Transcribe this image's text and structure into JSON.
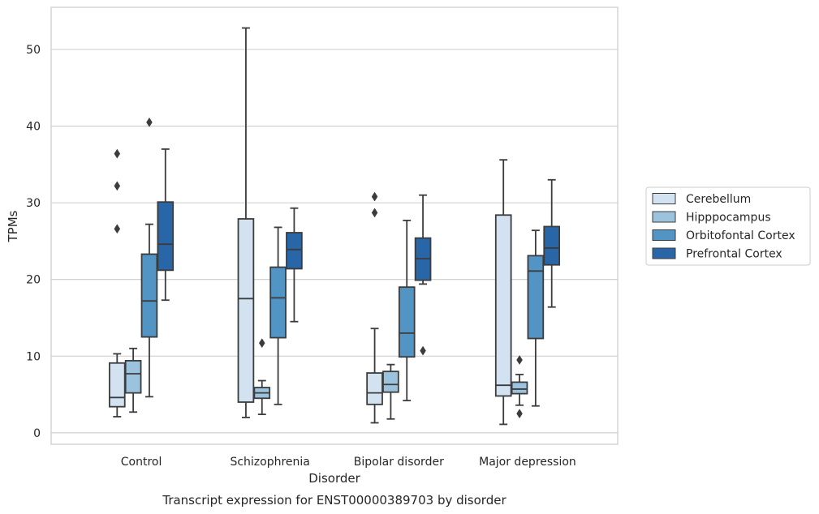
{
  "chart_data": {
    "type": "box",
    "title": "",
    "caption": "Transcript expression for ENST00000389703 by disorder",
    "xlabel": "Disorder",
    "ylabel": "TPMs",
    "ylim": [
      -1.5,
      55.5
    ],
    "yticks": [
      0,
      10,
      20,
      30,
      40,
      50
    ],
    "grid": "horizontal",
    "legend_position": "right-outside",
    "categories": [
      "Control",
      "Schizophrenia",
      "Bipolar disorder",
      "Major depression"
    ],
    "series": [
      {
        "name": "Cerebellum",
        "color": "#d3e2f0",
        "boxes": [
          {
            "whislo": 2.1,
            "q1": 3.4,
            "med": 4.6,
            "q3": 9.1,
            "whishi": 10.3,
            "fliers": [
              26.6,
              32.2,
              36.4
            ]
          },
          {
            "whislo": 2.0,
            "q1": 4.0,
            "med": 17.5,
            "q3": 27.9,
            "whishi": 52.8,
            "fliers": []
          },
          {
            "whislo": 1.3,
            "q1": 3.7,
            "med": 5.2,
            "q3": 7.8,
            "whishi": 13.6,
            "fliers": [
              28.7,
              30.8
            ]
          },
          {
            "whislo": 1.1,
            "q1": 4.8,
            "med": 6.2,
            "q3": 28.4,
            "whishi": 35.6,
            "fliers": []
          }
        ]
      },
      {
        "name": "Hipppocampus",
        "color": "#9cc3dd",
        "boxes": [
          {
            "whislo": 2.7,
            "q1": 5.2,
            "med": 7.7,
            "q3": 9.4,
            "whishi": 11.0,
            "fliers": []
          },
          {
            "whislo": 2.4,
            "q1": 4.5,
            "med": 5.2,
            "q3": 5.9,
            "whishi": 6.8,
            "fliers": [
              11.7
            ]
          },
          {
            "whislo": 1.8,
            "q1": 5.3,
            "med": 6.3,
            "q3": 8.0,
            "whishi": 8.9,
            "fliers": []
          },
          {
            "whislo": 3.6,
            "q1": 5.1,
            "med": 5.7,
            "q3": 6.6,
            "whishi": 7.6,
            "fliers": [
              2.5,
              9.5
            ]
          }
        ]
      },
      {
        "name": "Orbitofontal Cortex",
        "color": "#5294c4",
        "boxes": [
          {
            "whislo": 4.7,
            "q1": 12.5,
            "med": 17.2,
            "q3": 23.3,
            "whishi": 27.2,
            "fliers": [
              40.5
            ]
          },
          {
            "whislo": 3.7,
            "q1": 12.4,
            "med": 17.6,
            "q3": 21.6,
            "whishi": 26.8,
            "fliers": []
          },
          {
            "whislo": 4.2,
            "q1": 9.9,
            "med": 13.0,
            "q3": 19.0,
            "whishi": 27.7,
            "fliers": []
          },
          {
            "whislo": 3.5,
            "q1": 12.3,
            "med": 21.1,
            "q3": 23.1,
            "whishi": 26.4,
            "fliers": []
          }
        ]
      },
      {
        "name": "Prefrontal Cortex",
        "color": "#2866a8",
        "boxes": [
          {
            "whislo": 17.3,
            "q1": 21.2,
            "med": 24.6,
            "q3": 30.1,
            "whishi": 37.0,
            "fliers": []
          },
          {
            "whislo": 14.5,
            "q1": 21.4,
            "med": 23.9,
            "q3": 26.1,
            "whishi": 29.3,
            "fliers": []
          },
          {
            "whislo": 19.4,
            "q1": 19.9,
            "med": 22.7,
            "q3": 25.4,
            "whishi": 31.0,
            "fliers": [
              10.7
            ]
          },
          {
            "whislo": 16.4,
            "q1": 21.9,
            "med": 24.1,
            "q3": 26.9,
            "whishi": 33.0,
            "fliers": []
          }
        ]
      }
    ]
  }
}
